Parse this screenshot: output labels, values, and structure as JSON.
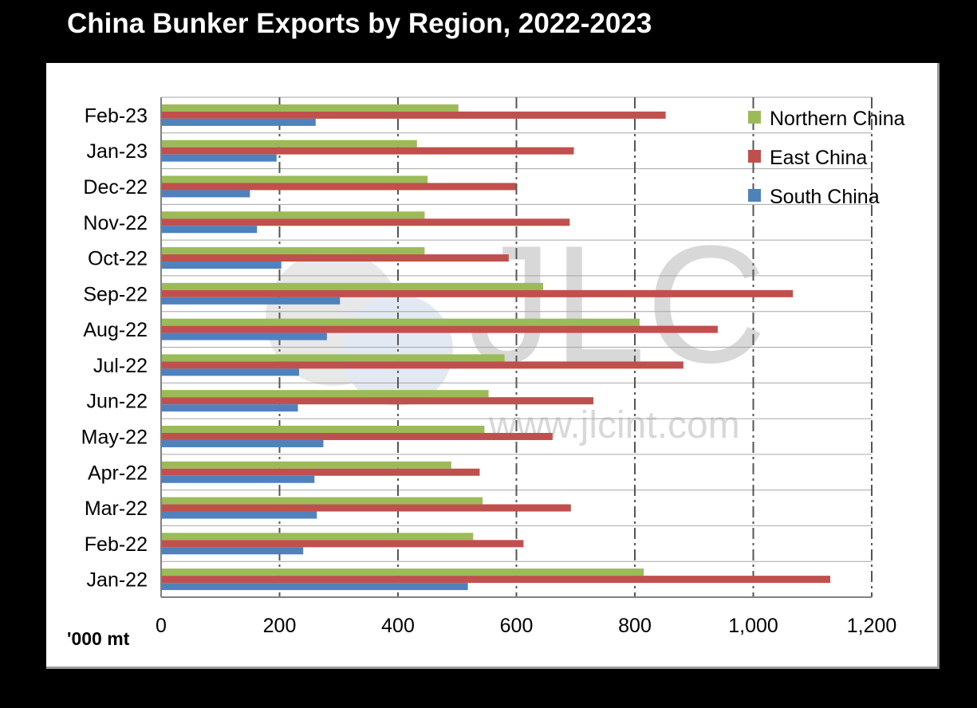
{
  "colors": {
    "background": "#000000",
    "panel": "#ffffff",
    "northern": "#9bbb59",
    "east": "#c0504d",
    "south": "#4f81bd",
    "grid": "#555555",
    "row_line": "#a6a6a6",
    "watermark": "#d8d8d8"
  },
  "watermark": {
    "logo_text": "JLC",
    "url_text": "www.jlcint.com"
  },
  "chart_data": {
    "type": "bar",
    "orientation": "horizontal",
    "title": "China Bunker Exports by Region, 2022-2023",
    "xlabel": "'000 mt",
    "ylabel": "",
    "xlim": [
      0,
      1200
    ],
    "x_ticks": [
      0,
      200,
      400,
      600,
      800,
      1000,
      1200
    ],
    "x_tick_labels": [
      "0",
      "200",
      "400",
      "600",
      "800",
      "1,000",
      "1,200"
    ],
    "grid": "vertical dashed",
    "legend_position": "top-right",
    "categories": [
      "Feb-23",
      "Jan-23",
      "Dec-22",
      "Nov-22",
      "Oct-22",
      "Sep-22",
      "Aug-22",
      "Jul-22",
      "Jun-22",
      "May-22",
      "Apr-22",
      "Mar-22",
      "Feb-22",
      "Jan-22"
    ],
    "series": [
      {
        "name": "Northern China",
        "color": "#9bbb59",
        "values": [
          502,
          432,
          450,
          445,
          445,
          645,
          808,
          580,
          553,
          546,
          490,
          543,
          527,
          815
        ]
      },
      {
        "name": "East China",
        "color": "#c0504d",
        "values": [
          852,
          697,
          599,
          690,
          587,
          1067,
          940,
          882,
          730,
          661,
          538,
          692,
          612,
          1130
        ]
      },
      {
        "name": "South China",
        "color": "#4f81bd",
        "values": [
          261,
          195,
          150,
          162,
          203,
          302,
          280,
          233,
          231,
          274,
          259,
          263,
          240,
          518
        ]
      }
    ]
  }
}
